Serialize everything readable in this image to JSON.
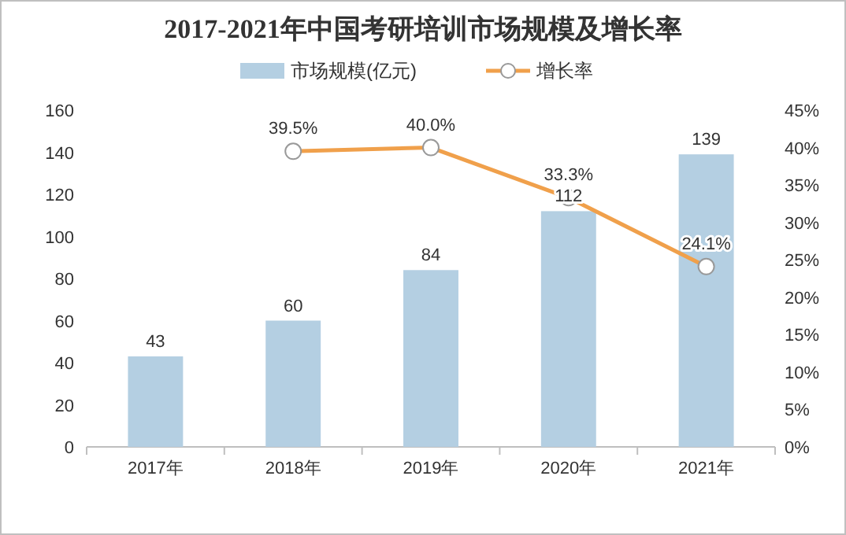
{
  "chart_data": {
    "type": "bar",
    "title": "2017-2021年中国考研培训市场规模及增长率",
    "categories": [
      "2017年",
      "2018年",
      "2019年",
      "2020年",
      "2021年"
    ],
    "series": [
      {
        "name": "市场规模(亿元)",
        "color": "#b4cfe2",
        "values": [
          43,
          60,
          84,
          112,
          139
        ],
        "value_labels": [
          "43",
          "60",
          "84",
          "112",
          "139"
        ]
      },
      {
        "name": "增长率",
        "type": "line",
        "axis": "y2",
        "color": "#f0a04b",
        "marker": "circle",
        "values": [
          null,
          39.5,
          40.0,
          33.3,
          24.1
        ],
        "value_labels": [
          null,
          "39.5%",
          "40.0%",
          "33.3%",
          "24.1%"
        ]
      }
    ],
    "ylim": [
      0,
      160
    ],
    "yticks": [
      0,
      20,
      40,
      60,
      80,
      100,
      120,
      140,
      160
    ],
    "y2lim": [
      0,
      45
    ],
    "y2ticks": [
      {
        "value": 0,
        "label": "0%"
      },
      {
        "value": 5,
        "label": "5%"
      },
      {
        "value": 10,
        "label": "10%"
      },
      {
        "value": 15,
        "label": "15%"
      },
      {
        "value": 20,
        "label": "20%"
      },
      {
        "value": 25,
        "label": "25%"
      },
      {
        "value": 30,
        "label": "30%"
      },
      {
        "value": 35,
        "label": "35%"
      },
      {
        "value": 40,
        "label": "40%"
      },
      {
        "value": 45,
        "label": "45%"
      }
    ],
    "legend": "top"
  }
}
